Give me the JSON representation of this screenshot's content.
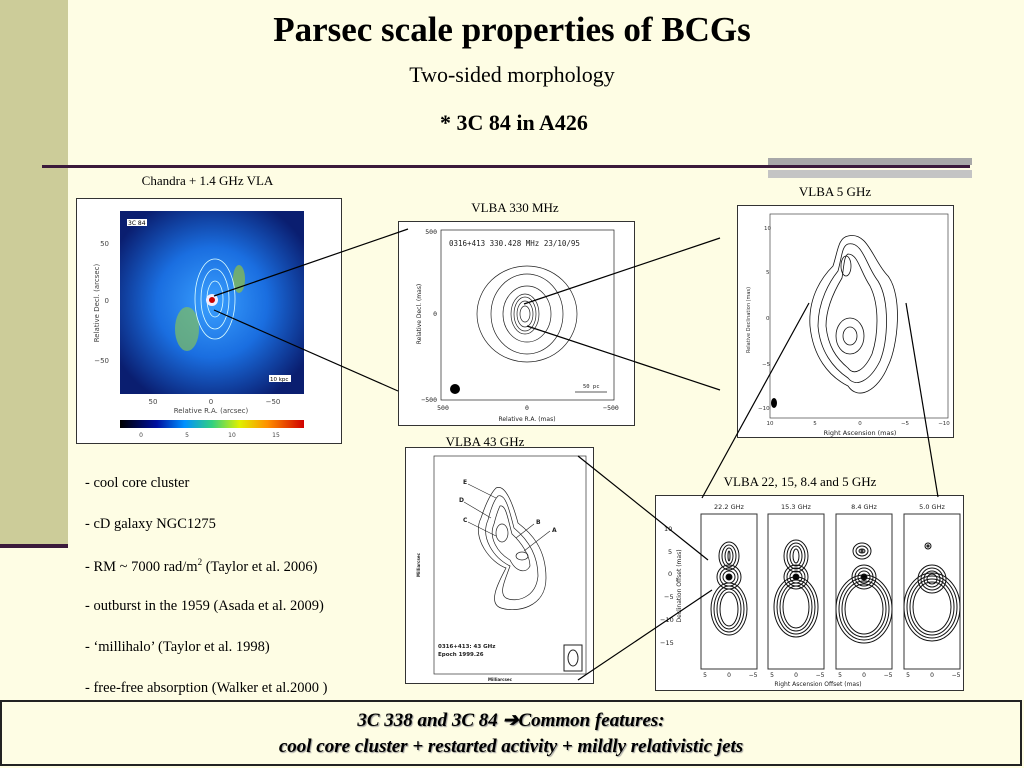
{
  "title": "Parsec scale properties of BCGs",
  "subtitle": "Two-sided morphology",
  "target": "* 3C 84 in A426",
  "figures": {
    "chandra": {
      "caption": "Chandra + 1.4 GHz VLA",
      "label": "3C 84",
      "xlabel": "Relative R.A. (arcsec)",
      "ylabel": "Relative Decl. (arcsec)",
      "xticks": [
        "50",
        "0",
        "−50"
      ],
      "yticks": [
        "50",
        "0",
        "−50"
      ],
      "colorbar_ticks": [
        "0",
        "5",
        "10",
        "15"
      ],
      "scalebar": "10 kpc"
    },
    "vlba330": {
      "caption": "VLBA 330 MHz",
      "header": "0316+413    330.428 MHz  23/10/95",
      "xlabel": "Relative R.A. (mas)",
      "ylabel": "Relative Decl. (mas)",
      "xticks": [
        "500",
        "0",
        "−500"
      ],
      "yticks": [
        "500",
        "0",
        "−500"
      ],
      "scalebar": "50 pc"
    },
    "vlba5": {
      "caption": "VLBA 5 GHz",
      "xlabel": "Right Ascension (mas)",
      "ylabel": "Relative Declination (mas)",
      "xticks": [
        "10",
        "5",
        "0",
        "−5",
        "−10"
      ],
      "yticks": [
        "10",
        "5",
        "0",
        "−5",
        "−10"
      ]
    },
    "vlba43": {
      "caption": "VLBA 43 GHz",
      "labels": [
        "E",
        "D",
        "C",
        "B",
        "A"
      ],
      "note1": "0316+413: 43 GHz",
      "note2": "Epoch 1999.26",
      "xlabel": "Milliarcsec",
      "ylabel": "Milliarcsec"
    },
    "multi": {
      "caption": "VLBA 22, 15,  8.4 and 5 GHz",
      "panels": [
        "22.2 GHz",
        "15.3 GHz",
        "8.4 GHz",
        "5.0 GHz"
      ],
      "xlabel": "Right Ascension Offset (mas)",
      "ylabel": "Declination Offset (mas)",
      "yticks": [
        "10",
        "5",
        "0",
        "−5",
        "−10",
        "−15"
      ],
      "xticks": [
        "5",
        "0",
        "−5"
      ]
    }
  },
  "bullets": [
    {
      "text": "- cool core cluster"
    },
    {
      "text": "- cD galaxy NGC1275"
    },
    {
      "pre": "- RM ~ 7000 rad/m",
      "sup": "2",
      "post": " (Taylor et al. 2006)"
    },
    {
      "text": "- outburst in the 1959 (Asada et al. 2009)"
    },
    {
      "text": "- ‘millihalo’ (Taylor et al. 1998)"
    },
    {
      "text": "- free-free absorption (Walker et al.2000 )"
    }
  ],
  "summary": {
    "line1_a": "3C 338 and 3C 84 ",
    "arrow": "➔",
    "line1_b": "Common features:",
    "line2": "cool core cluster + restarted activity + mildly relativistic jets"
  },
  "colors": {
    "sidebar": "#cccc99",
    "rule": "#3b1a3b",
    "background": "#fefde4"
  }
}
